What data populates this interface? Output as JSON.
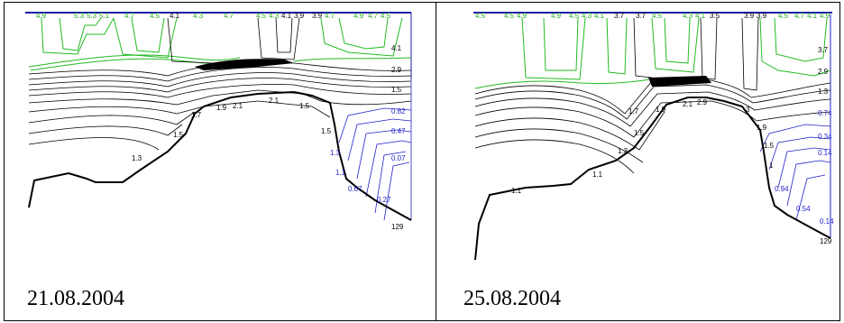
{
  "panels": [
    {
      "caption": "21.08.2004",
      "top_labels": [
        "4.9",
        "5.3",
        "5.3",
        "5.1",
        "4.7",
        "4.5",
        "4.1",
        "4.3",
        "4.7",
        "4.5",
        "4.3",
        "4.1",
        "3.9",
        "3.9",
        "4.7",
        "4.9",
        "4.7",
        "4.5"
      ],
      "right_labels": [
        "4.1",
        "2.9",
        "1.5",
        "0.82",
        "0.47",
        "0.07"
      ],
      "inner_labels": [
        "1.7",
        "1.9",
        "2.1",
        "2.1",
        "1.5",
        "1.5",
        "1.3",
        "1.5",
        "1.3",
        "1.1",
        "0.67",
        "0.27"
      ],
      "depth_label": "129"
    },
    {
      "caption": "25.08.2004",
      "top_labels": [
        "4.5",
        "4.5",
        "4.9",
        "4.9",
        "4.5",
        "4.3",
        "4.1",
        "3.7",
        "3.7",
        "4.5",
        "4.3",
        "4.1",
        "3.5",
        "3.9",
        "3.9",
        "4.5",
        "4.7",
        "4.1",
        "4.9"
      ],
      "right_labels": [
        "3.7",
        "2.9",
        "1.3",
        "0.74",
        "0.34",
        "0.14"
      ],
      "inner_labels": [
        "1.7",
        "1.9",
        "2.1",
        "2.9",
        "1.5",
        "1.3",
        "1.1",
        "1.1",
        "3",
        "1.9",
        "1.5",
        "1",
        "0.94",
        "0.54",
        "0.14"
      ],
      "depth_label": "129"
    }
  ]
}
